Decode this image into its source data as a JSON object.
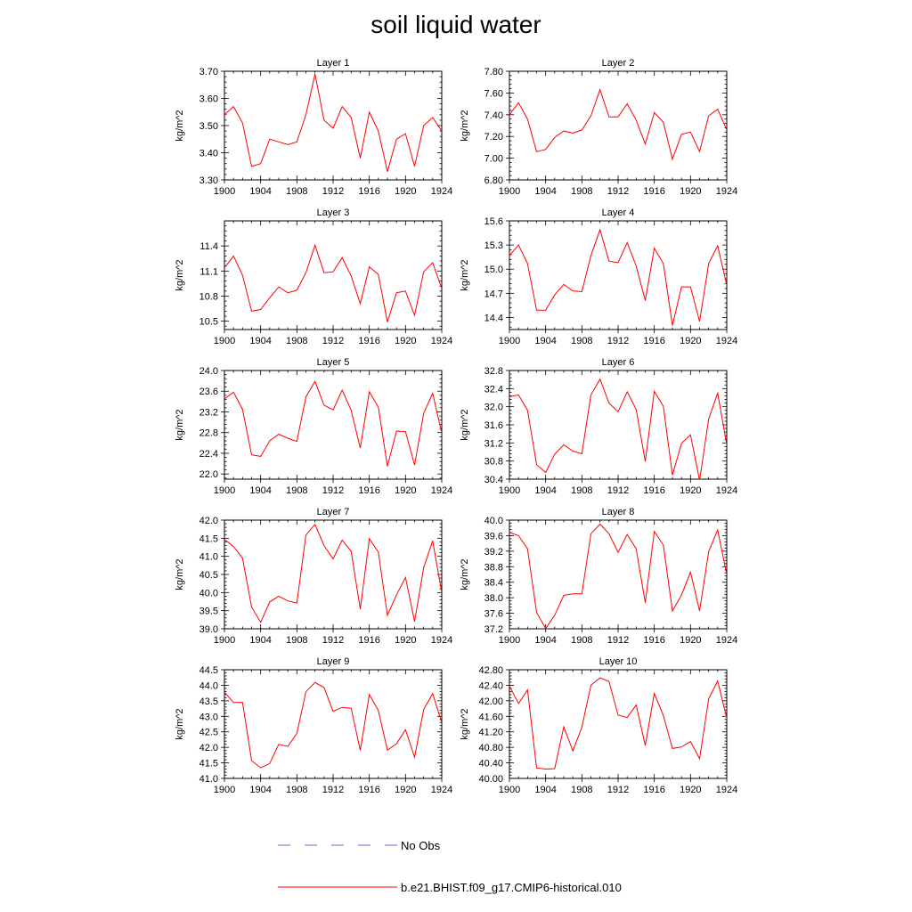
{
  "title": "soil liquid water",
  "legend": {
    "obs_label": "No Obs",
    "model_label": "b.e21.BHIST.f09_g17.CMIP6-historical.010",
    "model_color": "#ff0000",
    "obs_color": "#6b6bd6"
  },
  "chart_data": [
    {
      "type": "line",
      "title": "Layer 1",
      "ylabel": "kg/m^2",
      "ylim": [
        3.3,
        3.7
      ],
      "yticks": [
        "3.30",
        "3.40",
        "3.50",
        "3.60",
        "3.70"
      ],
      "ytick_values": [
        3.3,
        3.4,
        3.5,
        3.6,
        3.7
      ],
      "xlim": [
        1900,
        1924
      ],
      "xticks": [
        "1900",
        "1904",
        "1908",
        "1912",
        "1916",
        "1920",
        "1924"
      ],
      "x": [
        1900,
        1901,
        1902,
        1903,
        1904,
        1905,
        1906,
        1907,
        1908,
        1909,
        1910,
        1911,
        1912,
        1913,
        1914,
        1915,
        1916,
        1917,
        1918,
        1919,
        1920,
        1921,
        1922,
        1923,
        1924
      ],
      "series": [
        {
          "values": [
            3.54,
            3.57,
            3.51,
            3.35,
            3.36,
            3.45,
            3.44,
            3.43,
            3.44,
            3.54,
            3.69,
            3.52,
            3.49,
            3.57,
            3.53,
            3.38,
            3.55,
            3.48,
            3.33,
            3.45,
            3.47,
            3.35,
            3.5,
            3.53,
            3.48
          ]
        }
      ]
    },
    {
      "type": "line",
      "title": "Layer 2",
      "ylabel": "kg/m^2",
      "ylim": [
        6.8,
        7.8
      ],
      "yticks": [
        "6.80",
        "7.00",
        "7.20",
        "7.40",
        "7.60",
        "7.80"
      ],
      "ytick_values": [
        6.8,
        7.0,
        7.2,
        7.4,
        7.6,
        7.8
      ],
      "xlim": [
        1900,
        1924
      ],
      "xticks": [
        "1900",
        "1904",
        "1908",
        "1912",
        "1916",
        "1920",
        "1924"
      ],
      "x": [
        1900,
        1901,
        1902,
        1903,
        1904,
        1905,
        1906,
        1907,
        1908,
        1909,
        1910,
        1911,
        1912,
        1913,
        1914,
        1915,
        1916,
        1917,
        1918,
        1919,
        1920,
        1921,
        1922,
        1923,
        1924
      ],
      "series": [
        {
          "values": [
            7.4,
            7.51,
            7.36,
            7.06,
            7.08,
            7.19,
            7.25,
            7.23,
            7.26,
            7.39,
            7.63,
            7.38,
            7.38,
            7.5,
            7.35,
            7.13,
            7.42,
            7.33,
            6.99,
            7.22,
            7.24,
            7.06,
            7.39,
            7.45,
            7.26
          ]
        }
      ]
    },
    {
      "type": "line",
      "title": "Layer 3",
      "ylabel": "kg/m^2",
      "ylim": [
        10.4,
        11.7
      ],
      "yticks": [
        "10.5",
        "10.8",
        "11.1",
        "11.4"
      ],
      "ytick_values": [
        10.5,
        10.8,
        11.1,
        11.4
      ],
      "xlim": [
        1900,
        1924
      ],
      "xticks": [
        "1900",
        "1904",
        "1908",
        "1912",
        "1916",
        "1920",
        "1924"
      ],
      "x": [
        1900,
        1901,
        1902,
        1903,
        1904,
        1905,
        1906,
        1907,
        1908,
        1909,
        1910,
        1911,
        1912,
        1913,
        1914,
        1915,
        1916,
        1917,
        1918,
        1919,
        1920,
        1921,
        1922,
        1923,
        1924
      ],
      "series": [
        {
          "values": [
            11.14,
            11.28,
            11.05,
            10.62,
            10.64,
            10.78,
            10.91,
            10.84,
            10.87,
            11.08,
            11.41,
            11.08,
            11.09,
            11.26,
            11.04,
            10.71,
            11.15,
            11.06,
            10.49,
            10.84,
            10.86,
            10.57,
            11.09,
            11.2,
            10.89
          ]
        }
      ]
    },
    {
      "type": "line",
      "title": "Layer 4",
      "ylabel": "kg/m^2",
      "ylim": [
        14.25,
        15.6
      ],
      "yticks": [
        "14.4",
        "14.7",
        "15.0",
        "15.3",
        "15.6"
      ],
      "ytick_values": [
        14.4,
        14.7,
        15.0,
        15.3,
        15.6
      ],
      "xlim": [
        1900,
        1924
      ],
      "xticks": [
        "1900",
        "1904",
        "1908",
        "1912",
        "1916",
        "1920",
        "1924"
      ],
      "x": [
        1900,
        1901,
        1902,
        1903,
        1904,
        1905,
        1906,
        1907,
        1908,
        1909,
        1910,
        1911,
        1912,
        1913,
        1914,
        1915,
        1916,
        1917,
        1918,
        1919,
        1920,
        1921,
        1922,
        1923,
        1924
      ],
      "series": [
        {
          "values": [
            15.17,
            15.3,
            15.07,
            14.49,
            14.49,
            14.68,
            14.81,
            14.73,
            14.72,
            15.17,
            15.49,
            15.1,
            15.08,
            15.33,
            15.04,
            14.61,
            15.26,
            15.07,
            14.3,
            14.78,
            14.78,
            14.35,
            15.07,
            15.29,
            14.8
          ]
        }
      ]
    },
    {
      "type": "line",
      "title": "Layer 5",
      "ylabel": "kg/m^2",
      "ylim": [
        21.9,
        24.0
      ],
      "yticks": [
        "22.0",
        "22.4",
        "22.8",
        "23.2",
        "23.6",
        "24.0"
      ],
      "ytick_values": [
        22.0,
        22.4,
        22.8,
        23.2,
        23.6,
        24.0
      ],
      "xlim": [
        1900,
        1924
      ],
      "xticks": [
        "1900",
        "1904",
        "1908",
        "1912",
        "1916",
        "1920",
        "1924"
      ],
      "x": [
        1900,
        1901,
        1902,
        1903,
        1904,
        1905,
        1906,
        1907,
        1908,
        1909,
        1910,
        1911,
        1912,
        1913,
        1914,
        1915,
        1916,
        1917,
        1918,
        1919,
        1920,
        1921,
        1922,
        1923,
        1924
      ],
      "series": [
        {
          "values": [
            23.45,
            23.58,
            23.25,
            22.37,
            22.34,
            22.64,
            22.77,
            22.69,
            22.63,
            23.49,
            23.79,
            23.33,
            23.24,
            23.62,
            23.23,
            22.5,
            23.59,
            23.29,
            22.15,
            22.83,
            22.82,
            22.17,
            23.17,
            23.56,
            22.79
          ]
        }
      ]
    },
    {
      "type": "line",
      "title": "Layer 6",
      "ylabel": "kg/m^2",
      "ylim": [
        30.4,
        32.8
      ],
      "yticks": [
        "30.4",
        "30.8",
        "31.2",
        "31.6",
        "32.0",
        "32.4",
        "32.8"
      ],
      "ytick_values": [
        30.4,
        30.8,
        31.2,
        31.6,
        32.0,
        32.4,
        32.8
      ],
      "xlim": [
        1900,
        1924
      ],
      "xticks": [
        "1900",
        "1904",
        "1908",
        "1912",
        "1916",
        "1920",
        "1924"
      ],
      "x": [
        1900,
        1901,
        1902,
        1903,
        1904,
        1905,
        1906,
        1907,
        1908,
        1909,
        1910,
        1911,
        1912,
        1913,
        1914,
        1915,
        1916,
        1917,
        1918,
        1919,
        1920,
        1921,
        1922,
        1923,
        1924
      ],
      "series": [
        {
          "values": [
            32.22,
            32.26,
            31.92,
            30.72,
            30.55,
            30.95,
            31.16,
            31.02,
            30.96,
            32.26,
            32.61,
            32.08,
            31.89,
            32.33,
            31.94,
            30.79,
            32.34,
            32.01,
            30.49,
            31.19,
            31.38,
            30.37,
            31.73,
            32.3,
            31.16
          ]
        }
      ]
    },
    {
      "type": "line",
      "title": "Layer 7",
      "ylabel": "kg/m^2",
      "ylim": [
        39.0,
        42.0
      ],
      "yticks": [
        "39.0",
        "39.5",
        "40.0",
        "40.5",
        "41.0",
        "41.5",
        "42.0"
      ],
      "ytick_values": [
        39.0,
        39.5,
        40.0,
        40.5,
        41.0,
        41.5,
        42.0
      ],
      "xlim": [
        1900,
        1924
      ],
      "xticks": [
        "1900",
        "1904",
        "1908",
        "1912",
        "1916",
        "1920",
        "1924"
      ],
      "x": [
        1900,
        1901,
        1902,
        1903,
        1904,
        1905,
        1906,
        1907,
        1908,
        1909,
        1910,
        1911,
        1912,
        1913,
        1914,
        1915,
        1916,
        1917,
        1918,
        1919,
        1920,
        1921,
        1922,
        1923,
        1924
      ],
      "series": [
        {
          "values": [
            41.47,
            41.27,
            40.95,
            39.6,
            39.18,
            39.74,
            39.9,
            39.77,
            39.71,
            41.59,
            41.88,
            41.3,
            40.93,
            41.45,
            41.14,
            39.54,
            41.49,
            41.12,
            39.37,
            39.94,
            40.42,
            39.2,
            40.69,
            41.43,
            39.99
          ]
        }
      ]
    },
    {
      "type": "line",
      "title": "Layer 8",
      "ylabel": "kg/m^2",
      "ylim": [
        37.2,
        40.0
      ],
      "yticks": [
        "37.2",
        "37.6",
        "38.0",
        "38.4",
        "38.8",
        "39.2",
        "39.6",
        "40.0"
      ],
      "ytick_values": [
        37.2,
        37.6,
        38.0,
        38.4,
        38.8,
        39.2,
        39.6,
        40.0
      ],
      "xlim": [
        1900,
        1924
      ],
      "xticks": [
        "1900",
        "1904",
        "1908",
        "1912",
        "1916",
        "1920",
        "1924"
      ],
      "x": [
        1900,
        1901,
        1902,
        1903,
        1904,
        1905,
        1906,
        1907,
        1908,
        1909,
        1910,
        1911,
        1912,
        1913,
        1914,
        1915,
        1916,
        1917,
        1918,
        1919,
        1920,
        1921,
        1922,
        1923,
        1924
      ],
      "series": [
        {
          "values": [
            39.68,
            39.6,
            39.26,
            37.62,
            37.21,
            37.55,
            38.06,
            38.1,
            38.1,
            39.65,
            39.9,
            39.65,
            39.17,
            39.63,
            39.26,
            37.87,
            39.71,
            39.36,
            37.66,
            38.07,
            38.66,
            37.66,
            39.19,
            39.75,
            38.59
          ]
        }
      ]
    },
    {
      "type": "line",
      "title": "Layer 9",
      "ylabel": "kg/m^2",
      "ylim": [
        41.0,
        44.5
      ],
      "yticks": [
        "41.0",
        "41.5",
        "42.0",
        "42.5",
        "43.0",
        "43.5",
        "44.0",
        "44.5"
      ],
      "ytick_values": [
        41.0,
        41.5,
        42.0,
        42.5,
        43.0,
        43.5,
        44.0,
        44.5
      ],
      "xlim": [
        1900,
        1924
      ],
      "xticks": [
        "1900",
        "1904",
        "1908",
        "1912",
        "1916",
        "1920",
        "1924"
      ],
      "x": [
        1900,
        1901,
        1902,
        1903,
        1904,
        1905,
        1906,
        1907,
        1908,
        1909,
        1910,
        1911,
        1912,
        1913,
        1914,
        1915,
        1916,
        1917,
        1918,
        1919,
        1920,
        1921,
        1922,
        1923,
        1924
      ],
      "series": [
        {
          "values": [
            43.78,
            43.44,
            43.45,
            41.57,
            41.34,
            41.48,
            42.1,
            42.03,
            42.45,
            43.79,
            44.09,
            43.93,
            43.16,
            43.29,
            43.26,
            41.9,
            43.7,
            43.19,
            41.91,
            42.12,
            42.57,
            41.68,
            43.22,
            43.73,
            42.79
          ]
        }
      ]
    },
    {
      "type": "line",
      "title": "Layer 10",
      "ylabel": "kg/m^2",
      "ylim": [
        40.0,
        42.8
      ],
      "yticks": [
        "40.00",
        "40.40",
        "40.80",
        "41.20",
        "41.60",
        "42.00",
        "42.40",
        "42.80"
      ],
      "ytick_values": [
        40.0,
        40.4,
        40.8,
        41.2,
        41.6,
        42.0,
        42.4,
        42.8
      ],
      "xlim": [
        1900,
        1924
      ],
      "xticks": [
        "1900",
        "1904",
        "1908",
        "1912",
        "1916",
        "1920",
        "1924"
      ],
      "x": [
        1900,
        1901,
        1902,
        1903,
        1904,
        1905,
        1906,
        1907,
        1908,
        1909,
        1910,
        1911,
        1912,
        1913,
        1914,
        1915,
        1916,
        1917,
        1918,
        1919,
        1920,
        1921,
        1922,
        1923,
        1924
      ],
      "series": [
        {
          "values": [
            42.38,
            41.93,
            42.28,
            40.27,
            40.24,
            40.25,
            41.33,
            40.71,
            41.32,
            42.4,
            42.59,
            42.5,
            41.63,
            41.57,
            41.89,
            40.85,
            42.19,
            41.62,
            40.77,
            40.81,
            40.95,
            40.51,
            42.05,
            42.51,
            41.55
          ]
        }
      ]
    }
  ]
}
